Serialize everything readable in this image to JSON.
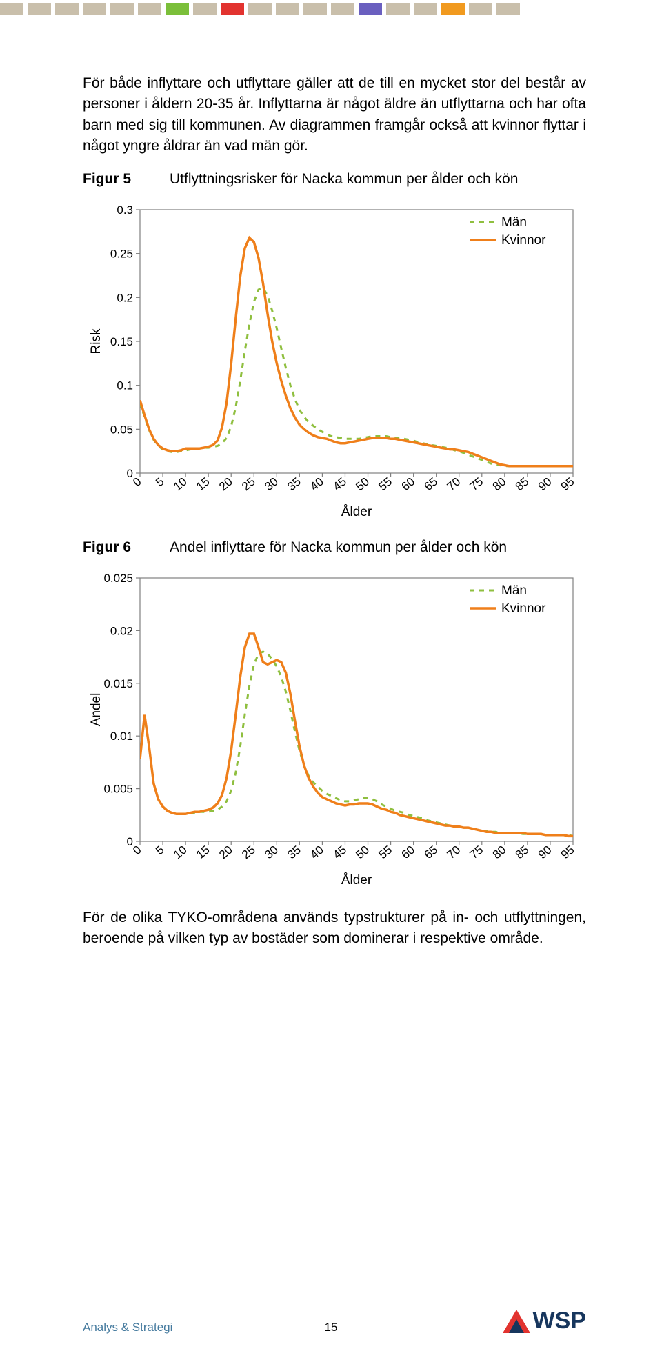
{
  "topbar": {
    "segments": [
      {
        "w": 34,
        "c": "#c9bfab"
      },
      {
        "w": 34,
        "c": "#c9bfab"
      },
      {
        "w": 34,
        "c": "#c9bfab"
      },
      {
        "w": 34,
        "c": "#c9bfab"
      },
      {
        "w": 34,
        "c": "#c9bfab"
      },
      {
        "w": 34,
        "c": "#c9bfab"
      },
      {
        "w": 34,
        "c": "#7bbf3a"
      },
      {
        "w": 34,
        "c": "#c9bfab"
      },
      {
        "w": 34,
        "c": "#e2332f"
      },
      {
        "w": 34,
        "c": "#c9bfab"
      },
      {
        "w": 34,
        "c": "#c9bfab"
      },
      {
        "w": 34,
        "c": "#c9bfab"
      },
      {
        "w": 34,
        "c": "#c9bfab"
      },
      {
        "w": 34,
        "c": "#6a5fbf"
      },
      {
        "w": 34,
        "c": "#c9bfab"
      },
      {
        "w": 34,
        "c": "#c9bfab"
      },
      {
        "w": 34,
        "c": "#f19a1f"
      },
      {
        "w": 34,
        "c": "#c9bfab"
      },
      {
        "w": 34,
        "c": "#c9bfab"
      }
    ]
  },
  "para1": "För både inflyttare och utflyttare gäller att de till en mycket stor del består av personer i åldern 20-35 år. Inflyttarna är något äldre än utflyttarna och har ofta barn med sig till kommunen. Av diagrammen framgår också att kvinnor flyttar i något yngre åldrar än vad män gör.",
  "fig5": {
    "label": "Figur 5",
    "caption": "Utflyttningsrisker för Nacka kommun per ålder och kön"
  },
  "fig6": {
    "label": "Figur 6",
    "caption": "Andel inflyttare för Nacka kommun per ålder och kön"
  },
  "para2": "För de olika TYKO-områdena används typstrukturer på in- och utflyttningen, beroende på vilken typ av bostäder som dominerar i respektive område.",
  "footer": {
    "left": "Analys & Strategi",
    "page": "15",
    "logo": "WSP"
  },
  "legend": {
    "men": "Män",
    "women": "Kvinnor"
  },
  "chart_common": {
    "x_ticks": [
      0,
      5,
      10,
      15,
      20,
      25,
      30,
      35,
      40,
      45,
      50,
      55,
      60,
      65,
      70,
      75,
      80,
      85,
      90,
      95
    ],
    "x_label": "Ålder",
    "colors": {
      "men": "#8fbf3f",
      "women": "#ef7f1a",
      "axis": "#808080",
      "grid": "#ffffff",
      "bg": "#ffffff",
      "text": "#000000",
      "dash": "7,7"
    },
    "line_width_women": 3.5,
    "line_width_men": 3.0
  },
  "chart5": {
    "type": "line",
    "y_label": "Risk",
    "y_ticks": [
      0,
      0.05,
      0.1,
      0.15,
      0.2,
      0.25,
      0.3
    ],
    "y_tick_labels": [
      "0",
      "0.05",
      "0.1",
      "0.15",
      "0.2",
      "0.25",
      "0.3"
    ],
    "ylim": [
      0,
      0.3
    ],
    "series": {
      "women": [
        0.083,
        0.066,
        0.05,
        0.039,
        0.032,
        0.028,
        0.026,
        0.025,
        0.025,
        0.026,
        0.028,
        0.028,
        0.028,
        0.028,
        0.029,
        0.03,
        0.032,
        0.037,
        0.052,
        0.08,
        0.124,
        0.176,
        0.224,
        0.256,
        0.268,
        0.263,
        0.245,
        0.216,
        0.181,
        0.15,
        0.125,
        0.105,
        0.088,
        0.074,
        0.063,
        0.055,
        0.05,
        0.046,
        0.043,
        0.041,
        0.04,
        0.039,
        0.037,
        0.035,
        0.034,
        0.034,
        0.035,
        0.036,
        0.037,
        0.038,
        0.039,
        0.04,
        0.04,
        0.04,
        0.04,
        0.039,
        0.039,
        0.038,
        0.037,
        0.036,
        0.035,
        0.034,
        0.033,
        0.032,
        0.031,
        0.03,
        0.029,
        0.028,
        0.027,
        0.027,
        0.026,
        0.025,
        0.024,
        0.022,
        0.02,
        0.018,
        0.016,
        0.014,
        0.012,
        0.01,
        0.009,
        0.008,
        0.008,
        0.008,
        0.008,
        0.008,
        0.008,
        0.008,
        0.008,
        0.008,
        0.008,
        0.008,
        0.008,
        0.008,
        0.008,
        0.008
      ],
      "men": [
        0.08,
        0.064,
        0.049,
        0.038,
        0.031,
        0.027,
        0.025,
        0.024,
        0.024,
        0.025,
        0.026,
        0.027,
        0.028,
        0.028,
        0.029,
        0.029,
        0.03,
        0.031,
        0.034,
        0.04,
        0.053,
        0.075,
        0.105,
        0.139,
        0.17,
        0.195,
        0.209,
        0.211,
        0.202,
        0.185,
        0.165,
        0.142,
        0.12,
        0.1,
        0.084,
        0.072,
        0.064,
        0.058,
        0.054,
        0.05,
        0.047,
        0.044,
        0.042,
        0.041,
        0.04,
        0.039,
        0.039,
        0.039,
        0.039,
        0.04,
        0.041,
        0.042,
        0.042,
        0.042,
        0.042,
        0.041,
        0.04,
        0.04,
        0.039,
        0.038,
        0.037,
        0.035,
        0.034,
        0.033,
        0.032,
        0.031,
        0.03,
        0.029,
        0.028,
        0.026,
        0.025,
        0.023,
        0.021,
        0.019,
        0.017,
        0.015,
        0.013,
        0.011,
        0.01,
        0.009,
        0.008,
        0.008,
        0.008,
        0.008,
        0.008,
        0.008,
        0.008,
        0.008,
        0.008,
        0.008,
        0.008,
        0.008,
        0.008,
        0.008,
        0.008,
        0.008
      ]
    }
  },
  "chart6": {
    "type": "line",
    "y_label": "Andel",
    "y_ticks": [
      0,
      0.005,
      0.01,
      0.015,
      0.02,
      0.025
    ],
    "y_tick_labels": [
      "0",
      "0.005",
      "0.01",
      "0.015",
      "0.02",
      "0.025"
    ],
    "ylim": [
      0,
      0.025
    ],
    "series": {
      "women": [
        0.0078,
        0.012,
        0.009,
        0.0055,
        0.004,
        0.0033,
        0.0029,
        0.0027,
        0.0026,
        0.0026,
        0.0026,
        0.0027,
        0.0028,
        0.0028,
        0.0029,
        0.003,
        0.0032,
        0.0036,
        0.0044,
        0.006,
        0.0086,
        0.012,
        0.0156,
        0.0184,
        0.0197,
        0.0197,
        0.0184,
        0.017,
        0.0168,
        0.017,
        0.0172,
        0.017,
        0.016,
        0.014,
        0.0114,
        0.009,
        0.0072,
        0.006,
        0.0052,
        0.0046,
        0.0042,
        0.004,
        0.0038,
        0.0036,
        0.0035,
        0.0034,
        0.0035,
        0.0035,
        0.0036,
        0.0036,
        0.0036,
        0.0035,
        0.0033,
        0.0031,
        0.003,
        0.0028,
        0.0027,
        0.0025,
        0.0024,
        0.0023,
        0.0022,
        0.0021,
        0.002,
        0.0019,
        0.0018,
        0.0017,
        0.0016,
        0.0015,
        0.0015,
        0.0014,
        0.0014,
        0.0013,
        0.0013,
        0.0012,
        0.0011,
        0.001,
        0.0009,
        0.0009,
        0.0008,
        0.0008,
        0.0008,
        0.0008,
        0.0008,
        0.0008,
        0.0008,
        0.0007,
        0.0007,
        0.0007,
        0.0007,
        0.0006,
        0.0006,
        0.0006,
        0.0006,
        0.0006,
        0.0005,
        0.0005
      ],
      "men": [
        0.0078,
        0.0118,
        0.009,
        0.0055,
        0.004,
        0.0033,
        0.0029,
        0.0027,
        0.0026,
        0.0026,
        0.0026,
        0.0027,
        0.0027,
        0.0028,
        0.0028,
        0.0028,
        0.0029,
        0.003,
        0.0033,
        0.0038,
        0.0048,
        0.0065,
        0.009,
        0.012,
        0.0148,
        0.0168,
        0.0178,
        0.018,
        0.0178,
        0.0173,
        0.0166,
        0.0156,
        0.0142,
        0.0124,
        0.0104,
        0.0086,
        0.0072,
        0.0062,
        0.0056,
        0.0052,
        0.0048,
        0.0045,
        0.0043,
        0.0041,
        0.0039,
        0.0038,
        0.0038,
        0.0039,
        0.004,
        0.0041,
        0.0041,
        0.004,
        0.0038,
        0.0035,
        0.0033,
        0.0031,
        0.0029,
        0.0028,
        0.0027,
        0.0025,
        0.0024,
        0.0023,
        0.0022,
        0.002,
        0.0019,
        0.0018,
        0.0017,
        0.0016,
        0.0015,
        0.0014,
        0.0014,
        0.0013,
        0.0013,
        0.0012,
        0.0011,
        0.001,
        0.001,
        0.0009,
        0.0009,
        0.0008,
        0.0008,
        0.0008,
        0.0008,
        0.0008,
        0.0007,
        0.0007,
        0.0007,
        0.0007,
        0.0007,
        0.0006,
        0.0006,
        0.0006,
        0.0006,
        0.0006,
        0.0006,
        0.0005
      ]
    }
  }
}
